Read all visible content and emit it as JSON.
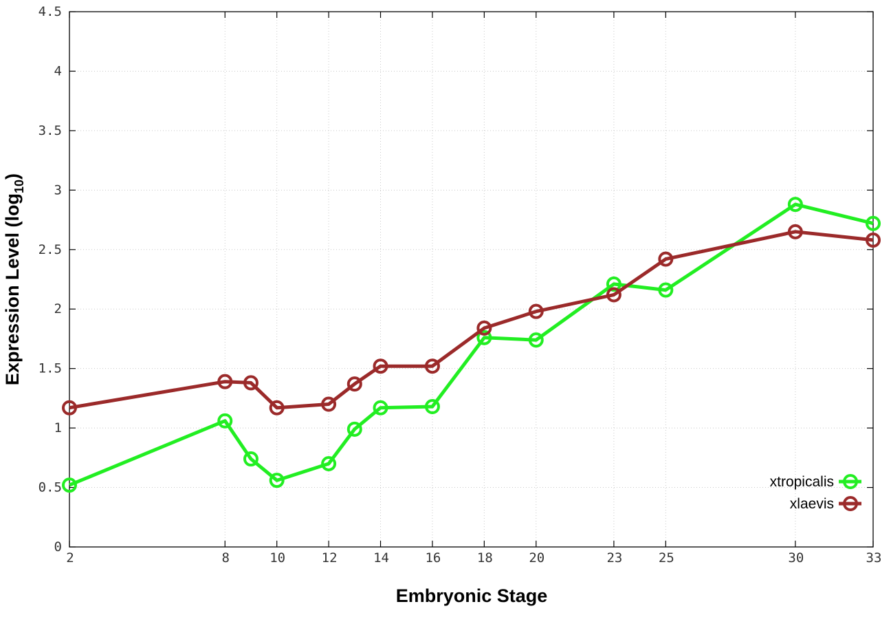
{
  "chart_data": {
    "type": "line",
    "xlabel": "Embryonic Stage",
    "ylabel_main": "Expression Level (log",
    "ylabel_sub": "10",
    "ylabel_close": ")",
    "xlim": [
      2,
      33
    ],
    "ylim": [
      0,
      4.5
    ],
    "x_ticks": [
      2,
      8,
      10,
      12,
      14,
      16,
      18,
      20,
      23,
      25,
      30,
      33
    ],
    "x_tick_labels": [
      "2",
      "8",
      "10",
      "12",
      "14",
      "16",
      "18",
      "20",
      "23",
      "25",
      "30",
      "33"
    ],
    "y_ticks": [
      0,
      0.5,
      1,
      1.5,
      2,
      2.5,
      3,
      3.5,
      4,
      4.5
    ],
    "y_tick_labels": [
      "0",
      "0.5",
      "1",
      "1.5",
      "2",
      "2.5",
      "3",
      "3.5",
      "4",
      "4.5"
    ],
    "grid": true,
    "legend_position": "bottom-right",
    "series": [
      {
        "name": "xtropicalis",
        "color": "#22ee22",
        "marker": "open-circle",
        "x": [
          2,
          8,
          9,
          10,
          12,
          13,
          14,
          16,
          18,
          20,
          23,
          25,
          30,
          33
        ],
        "y": [
          0.52,
          1.06,
          0.74,
          0.56,
          0.7,
          0.99,
          1.17,
          1.18,
          1.76,
          1.74,
          2.21,
          2.16,
          2.88,
          2.72
        ]
      },
      {
        "name": "xlaevis",
        "color": "#9b2a2a",
        "marker": "open-circle",
        "x": [
          2,
          8,
          9,
          10,
          12,
          13,
          14,
          16,
          18,
          20,
          23,
          25,
          30,
          33
        ],
        "y": [
          1.17,
          1.39,
          1.38,
          1.17,
          1.2,
          1.37,
          1.52,
          1.52,
          1.84,
          1.98,
          2.12,
          2.42,
          2.65,
          2.58
        ]
      }
    ]
  }
}
